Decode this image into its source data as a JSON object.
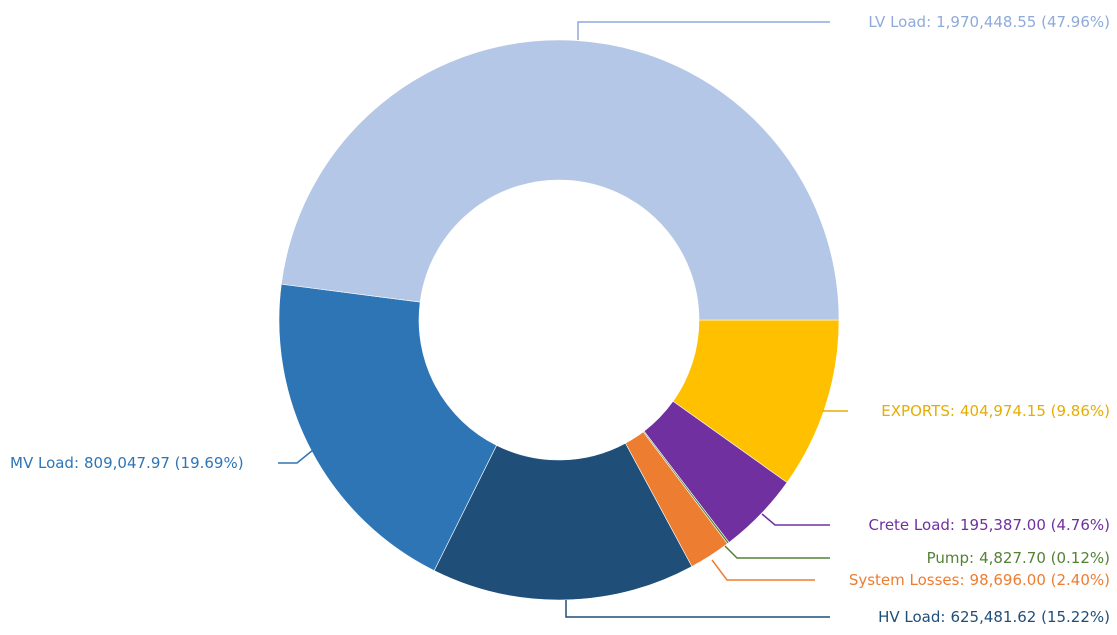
{
  "chart_data": {
    "type": "donut",
    "categories": [
      "EXPORTS:",
      "Crete Load:",
      "Pump:",
      "System Losses:",
      "HV Load:",
      "MV Load:",
      "LV Load:"
    ],
    "values": [
      404974.15,
      195387.0,
      4827.7,
      98696.0,
      625481.62,
      809047.97,
      1970448.55
    ],
    "value_labels": [
      "404,974.15 (9.86%)",
      "195,387.00 (4.76%)",
      "4,827.70 (0.12%)",
      "98,696.00 (2.40%)",
      "625,481.62 (15.22%)",
      "809,047.97 (19.69%)",
      "1,970,448.55 (47.96%)"
    ],
    "colors": [
      "#ffc000",
      "#7030a0",
      "#548235",
      "#ed7d31",
      "#1f4e79",
      "#2e75b6",
      "#b4c7e7"
    ],
    "label_colors": [
      "#e6ad00",
      "#7030a0",
      "#548235",
      "#ed7d31",
      "#1f4e79",
      "#2e75b6",
      "#8eaadb"
    ]
  }
}
